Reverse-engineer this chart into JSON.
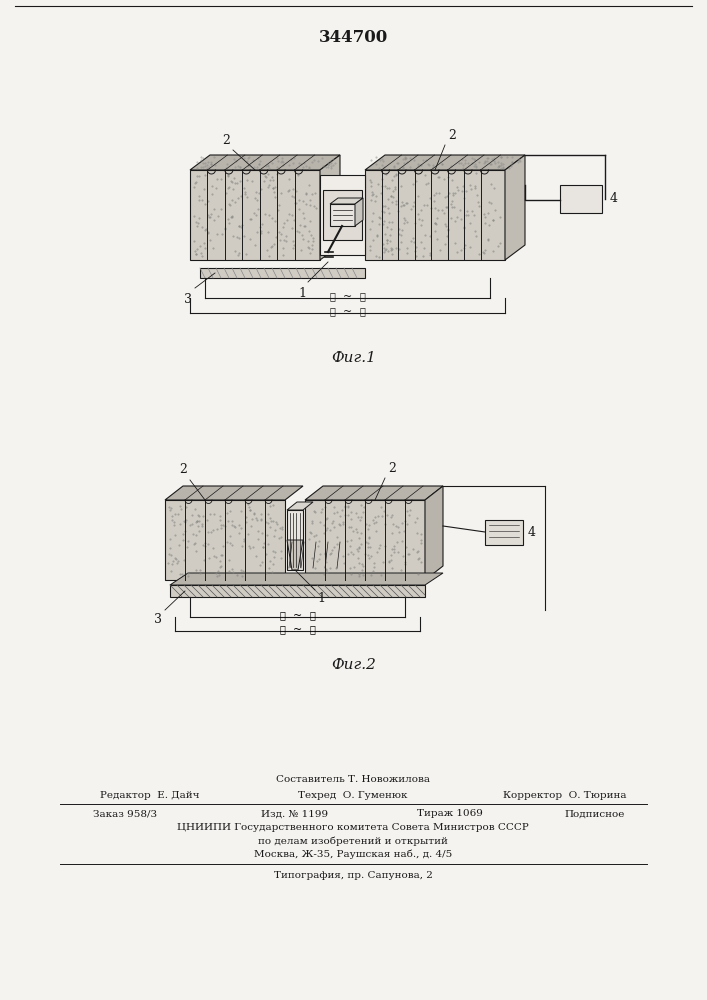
{
  "patent_number": "344700",
  "bg_color": "#ffffff",
  "page_bg": "#f5f3f0",
  "fig1_caption": "Фиг.1",
  "fig2_caption": "Фиг.2",
  "footer_composer": "Составитель Т. Новожилова",
  "footer_editor": "Редактор  Е. Дайч",
  "footer_tech": "Техред  О. Гуменюк",
  "footer_corrector": "Корректор  О. Тюрина",
  "footer_order": "Заказ 958/3",
  "footer_edition": "Изд. № 1199",
  "footer_circulation": "Тираж 1069",
  "footer_subscription": "Подписное",
  "footer_org": "ЦНИИПИ Государственного комитета Совета Министров СССР",
  "footer_subject": "по делам изобретений и открытий",
  "footer_address": "Москва, Ж-35, Раушская наб., д. 4/5",
  "footer_print": "Типография, пр. Сапунова, 2"
}
